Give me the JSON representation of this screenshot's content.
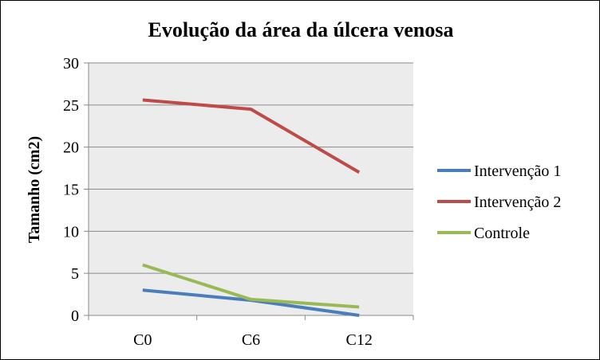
{
  "chart_data": {
    "type": "line",
    "title": "Evolução da área da úlcera venosa",
    "xlabel": "",
    "ylabel": "Tamanho (cm2)",
    "categories": [
      "C0",
      "C6",
      "C12"
    ],
    "ylim": [
      0,
      30
    ],
    "yticks": [
      0,
      5,
      10,
      15,
      20,
      25,
      30
    ],
    "grid": true,
    "legend": "right",
    "series": [
      {
        "name": "Intervenção 1",
        "values": [
          3,
          1.8,
          0
        ],
        "color": "#4a7ebb"
      },
      {
        "name": "Intervenção 2",
        "values": [
          25.6,
          24.5,
          17
        ],
        "color": "#be4b48"
      },
      {
        "name": "Controle",
        "values": [
          6,
          1.9,
          1
        ],
        "color": "#98b954"
      }
    ],
    "plot_background": "#ececec"
  }
}
